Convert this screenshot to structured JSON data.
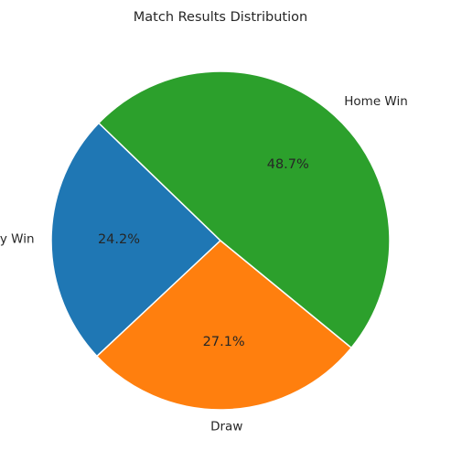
{
  "chart_data": {
    "type": "pie",
    "title": "Match Results Distribution",
    "categories": [
      "Away Win",
      "Draw",
      "Home Win"
    ],
    "values": [
      24.2,
      27.1,
      48.7
    ],
    "percent_labels": [
      "24.2%",
      "27.1%",
      "48.7%"
    ],
    "colors": [
      "#1f77b4",
      "#ff7f0e",
      "#2ca02c"
    ],
    "start_angle_deg": 136
  }
}
